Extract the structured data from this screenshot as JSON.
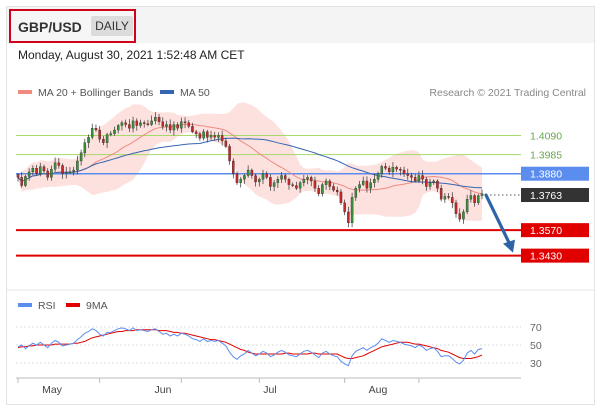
{
  "header": {
    "symbol": "GBP/USD",
    "timeframe": "DAILY",
    "timestamp": "Monday, August 30, 2021 1:52:48 AM CET"
  },
  "colors": {
    "bullish": "#3a8f3a",
    "bearish": "#c62828",
    "ma20": "#f08a80",
    "bollinger_fill": "#fcdcd8",
    "ma50": "#3565b0",
    "level_green": "#a6d96a",
    "level_blue": "#5b8def",
    "level_red": "#e00000",
    "current_price": "#333333",
    "arrow": "#2d64a8",
    "rsi": "#5b8def",
    "rsi_ma": "#e00000"
  },
  "chart_data": {
    "type": "candlestick",
    "legend": [
      {
        "name": "MA 20 + Bollinger Bands",
        "color": "#f08a80"
      },
      {
        "name": "MA 50",
        "color": "#3565b0"
      }
    ],
    "credit": "Research © 2021 Trading Central",
    "x_tick_labels": [
      "May",
      "Jun",
      "Jul",
      "Aug"
    ],
    "y_range": [
      1.3395,
      1.423
    ],
    "levels": [
      {
        "value": 1.409,
        "label": "1.4090",
        "style": "resistance-green"
      },
      {
        "value": 1.3985,
        "label": "1.3985",
        "style": "resistance-green"
      },
      {
        "value": 1.388,
        "label": "1.3880",
        "style": "pivot-blue"
      },
      {
        "value": 1.3763,
        "label": "1.3763",
        "style": "current-price"
      },
      {
        "value": 1.357,
        "label": "1.3570",
        "style": "support-red"
      },
      {
        "value": 1.343,
        "label": "1.3430",
        "style": "support-red"
      }
    ],
    "forecast_arrow": {
      "from": 1.3763,
      "to": 1.343,
      "direction": "down"
    },
    "closes": [
      1.386,
      1.3815,
      1.3865,
      1.389,
      1.391,
      1.388,
      1.3918,
      1.3895,
      1.386,
      1.3905,
      1.394,
      1.3925,
      1.388,
      1.3888,
      1.389,
      1.39,
      1.395,
      1.3995,
      1.405,
      1.408,
      1.413,
      1.412,
      1.407,
      1.405,
      1.4095,
      1.41,
      1.412,
      1.4145,
      1.416,
      1.415,
      1.413,
      1.417,
      1.4145,
      1.416,
      1.4155,
      1.415,
      1.417,
      1.419,
      1.4165,
      1.414,
      1.415,
      1.412,
      1.415,
      1.413,
      1.4165,
      1.416,
      1.414,
      1.411,
      1.41,
      1.4075,
      1.411,
      1.408,
      1.409,
      1.408,
      1.409,
      1.406,
      1.403,
      1.395,
      1.388,
      1.383,
      1.385,
      1.387,
      1.39,
      1.387,
      1.3835,
      1.385,
      1.388,
      1.386,
      1.381,
      1.383,
      1.385,
      1.387,
      1.385,
      1.382,
      1.3815,
      1.38,
      1.383,
      1.385,
      1.386,
      1.384,
      1.38,
      1.377,
      1.382,
      1.384,
      1.381,
      1.379,
      1.378,
      1.372,
      1.367,
      1.361,
      1.375,
      1.38,
      1.382,
      1.384,
      1.38,
      1.383,
      1.385,
      1.388,
      1.392,
      1.391,
      1.389,
      1.3915,
      1.3905,
      1.39,
      1.388,
      1.387,
      1.386,
      1.384,
      1.387,
      1.385,
      1.381,
      1.383,
      1.384,
      1.38,
      1.374,
      1.3755,
      1.375,
      1.372,
      1.366,
      1.363,
      1.367,
      1.374,
      1.376,
      1.372,
      1.376,
      1.377
    ],
    "rsi": {
      "legend": [
        {
          "name": "RSI",
          "color": "#5b8def"
        },
        {
          "name": "9MA",
          "color": "#e00000"
        }
      ],
      "y_range": [
        20,
        80
      ],
      "ticks": [
        70,
        50,
        30
      ],
      "values": [
        48,
        50,
        46,
        49,
        52,
        50,
        53,
        50,
        47,
        52,
        55,
        53,
        49,
        50,
        51,
        52,
        56,
        59,
        63,
        65,
        68,
        66,
        62,
        60,
        64,
        64,
        66,
        68,
        69,
        68,
        66,
        69,
        66,
        67,
        66,
        65,
        67,
        68,
        65,
        62,
        63,
        60,
        62,
        60,
        63,
        62,
        60,
        57,
        56,
        54,
        57,
        54,
        55,
        54,
        55,
        52,
        49,
        42,
        37,
        34,
        38,
        40,
        44,
        41,
        38,
        40,
        43,
        41,
        37,
        39,
        42,
        44,
        42,
        39,
        38,
        37,
        40,
        43,
        44,
        42,
        39,
        36,
        41,
        43,
        40,
        38,
        37,
        32,
        29,
        27,
        38,
        43,
        45,
        47,
        44,
        47,
        49,
        52,
        57,
        55,
        53,
        55,
        54,
        53,
        51,
        50,
        49,
        47,
        50,
        48,
        44,
        46,
        47,
        43,
        37,
        38,
        38,
        35,
        31,
        29,
        33,
        41,
        44,
        40,
        45,
        46
      ],
      "ma_values": [
        47,
        48,
        48,
        49,
        49,
        50,
        50,
        50,
        50,
        50,
        51,
        51,
        51,
        51,
        51,
        52,
        52,
        53,
        54,
        56,
        58,
        59,
        60,
        61,
        62,
        63,
        64,
        65,
        65,
        66,
        66,
        66,
        67,
        67,
        67,
        67,
        67,
        67,
        66,
        66,
        66,
        65,
        64,
        64,
        63,
        63,
        62,
        61,
        60,
        59,
        58,
        57,
        56,
        56,
        55,
        54,
        53,
        51,
        49,
        47,
        45,
        44,
        42,
        41,
        40,
        40,
        40,
        40,
        40,
        40,
        40,
        40,
        41,
        41,
        40,
        40,
        40,
        40,
        40,
        41,
        41,
        40,
        40,
        40,
        40,
        40,
        40,
        38,
        36,
        35,
        35,
        36,
        37,
        38,
        40,
        42,
        44,
        46,
        48,
        49,
        50,
        51,
        52,
        53,
        53,
        53,
        52,
        51,
        51,
        50,
        49,
        48,
        47,
        46,
        44,
        43,
        42,
        40,
        38,
        36,
        35,
        35,
        35,
        36,
        37,
        39
      ]
    }
  }
}
